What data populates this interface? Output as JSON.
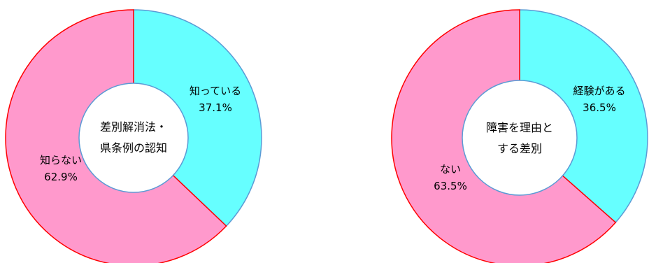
{
  "chart_data": [
    {
      "type": "pie",
      "center_label": [
        "差別解消法・",
        "県条例の認知"
      ],
      "slices": [
        {
          "label": "知っている",
          "value": 37.1,
          "value_label": "37.1%",
          "color": "#66ffff",
          "stroke": "#5b9bd5"
        },
        {
          "label": "知らない",
          "value": 62.9,
          "value_label": "62.9%",
          "color": "#ff99cc",
          "stroke": "#ff0000"
        }
      ]
    },
    {
      "type": "pie",
      "center_label": [
        "障害を理由と",
        "する差別"
      ],
      "slices": [
        {
          "label": "経験がある",
          "value": 36.5,
          "value_label": "36.5%",
          "color": "#66ffff",
          "stroke": "#5b9bd5"
        },
        {
          "label": "ない",
          "value": 63.5,
          "value_label": "63.5%",
          "color": "#ff99cc",
          "stroke": "#ff0000"
        }
      ]
    }
  ]
}
